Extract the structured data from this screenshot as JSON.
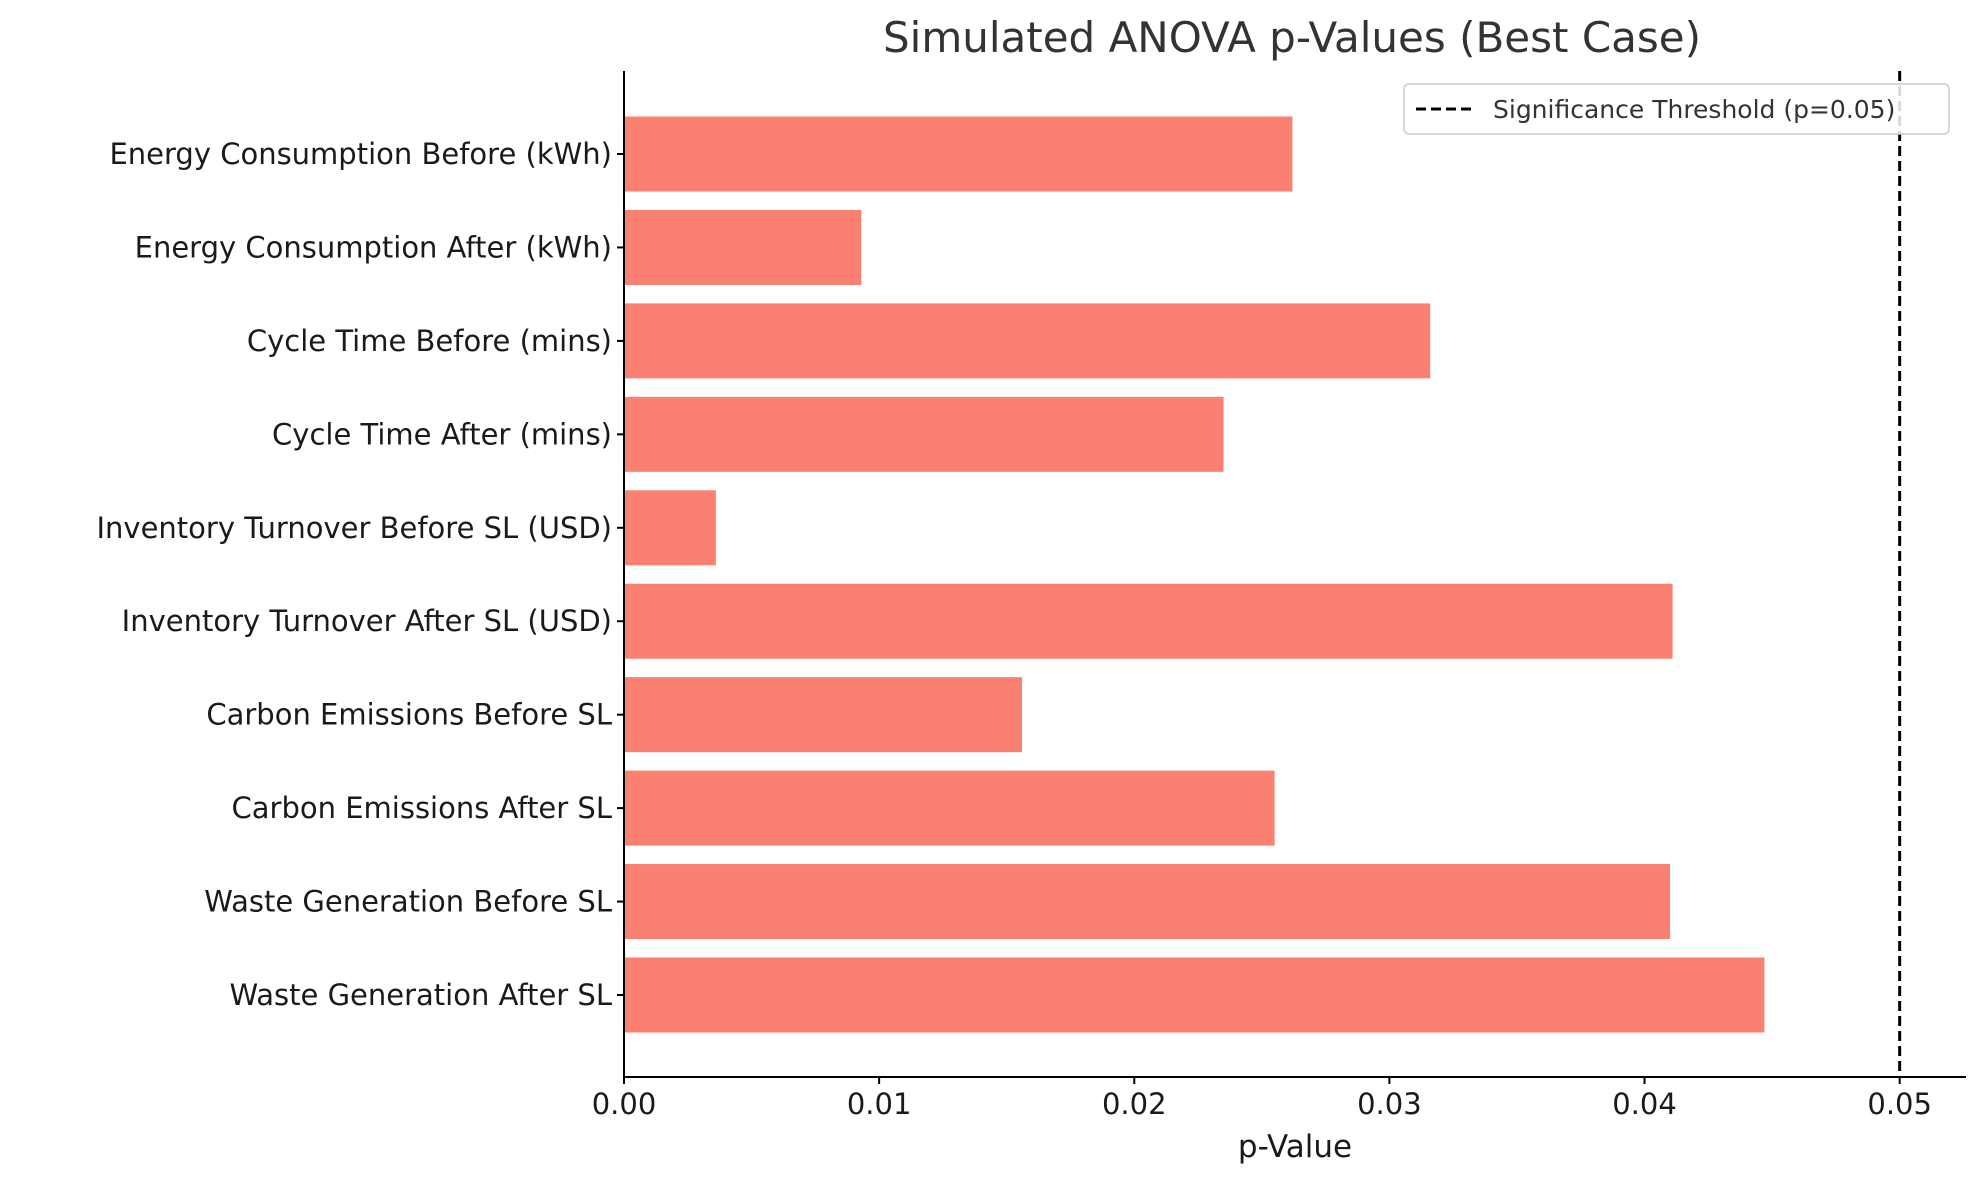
{
  "chart_data": {
    "type": "bar",
    "orientation": "horizontal",
    "title": "Simulated ANOVA p-Values (Best Case)",
    "xlabel": "p-Value",
    "ylabel": "",
    "categories": [
      "Energy Consumption Before (kWh)",
      "Energy Consumption After (kWh)",
      "Cycle Time Before (mins)",
      "Cycle Time After (mins)",
      "Inventory Turnover Before SL (USD)",
      "Inventory Turnover After SL (USD)",
      "Carbon Emissions Before SL",
      "Carbon Emissions After SL",
      "Waste Generation Before SL",
      "Waste Generation After SL"
    ],
    "values": [
      0.0262,
      0.0093,
      0.0316,
      0.0235,
      0.0036,
      0.0411,
      0.0156,
      0.0255,
      0.041,
      0.0447
    ],
    "xlim": [
      0,
      0.0526
    ],
    "xticks": [
      "0.00",
      "0.01",
      "0.02",
      "0.03",
      "0.04",
      "0.05"
    ],
    "xtick_values": [
      0,
      0.01,
      0.02,
      0.03,
      0.04,
      0.05
    ],
    "bar_color": "#fa8072",
    "threshold": {
      "value": 0.05,
      "label": "Significance Threshold (p=0.05)",
      "color": "#000000",
      "style": "dashed"
    },
    "legend_position": "top-right",
    "grid": false
  }
}
